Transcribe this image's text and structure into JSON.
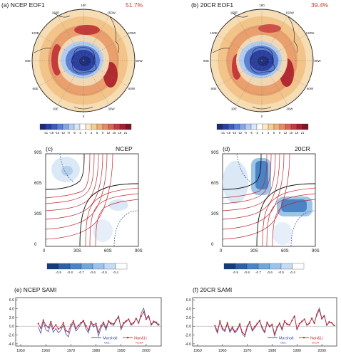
{
  "panels": {
    "a": {
      "title": "(a) NCEP EOF1",
      "percent": "51.7%",
      "lon_labels": [
        "180",
        "150W",
        "120W",
        "90W",
        "60W",
        "30W",
        "0",
        "30E",
        "60E",
        "90E",
        "120E",
        "150E"
      ]
    },
    "b": {
      "title": "(b) 20CR EOF1",
      "percent": "39.4%",
      "lon_labels": [
        "180",
        "150W",
        "120W",
        "90W",
        "60W",
        "30W",
        "0",
        "30E",
        "60E",
        "90E",
        "120E",
        "150E"
      ]
    },
    "c": {
      "title": "(c)",
      "label": "NCEP"
    },
    "d": {
      "title": "(d)",
      "label": "20CR"
    },
    "e": {
      "title": "(e) NCEP SAMI"
    },
    "f": {
      "title": "(f) 20CR SAMI"
    }
  },
  "colorbar_top": {
    "ticks": [
      "-21",
      "-18",
      "-15",
      "-12",
      "-9",
      "-6",
      "-3",
      "0",
      "3",
      "6",
      "9",
      "12",
      "15",
      "18",
      "21"
    ],
    "colors": [
      "#1a2a78",
      "#2b3f9e",
      "#3e5bbf",
      "#5a7fd6",
      "#84a7e3",
      "#b2cdef",
      "#d8e6f6",
      "#ffffff",
      "#fbe8c6",
      "#f4cf94",
      "#eeb079",
      "#e48c6a",
      "#d76456",
      "#c23b3f",
      "#a61f2e",
      "#7e1522"
    ]
  },
  "colorbar_corr": {
    "ticks": [
      "-0.9",
      "-0.8",
      "-0.7",
      "-0.6",
      "-0.5",
      "-0.4"
    ],
    "colors": [
      "#173a7a",
      "#2e5fa8",
      "#4a83c6",
      "#72a6da",
      "#9cc4e8",
      "#c4dcf2",
      "#ffffff"
    ]
  },
  "corr_axes": {
    "c": {
      "y_ticks": [
        "90S",
        "60S",
        "30S",
        "0"
      ],
      "x_ticks": [
        "0",
        "30S",
        "60S",
        "90S"
      ]
    },
    "d": {
      "y_ticks": [
        "90S",
        "60S",
        "30S",
        "0"
      ],
      "x_ticks": [
        "0",
        "30S",
        "60S",
        "90S"
      ]
    }
  },
  "timeseries_axes": {
    "y_ticks": [
      "6.0",
      "4.0",
      "2.0",
      "0.0",
      "-2.0",
      "-4.0"
    ],
    "x_ticks": [
      "1950",
      "1960",
      "1970",
      "1980",
      "1990",
      "2000"
    ]
  },
  "legend": {
    "e": {
      "marshall": "Marshall",
      "marshall_sub": "Obs.",
      "nanli": "Nan&Li",
      "nanli_sub": "NCEP"
    },
    "f": {
      "marshall": "Marshall",
      "marshall_sub": "Obs.",
      "nanli": "Nan&Li",
      "nanli_sub": "20CR"
    }
  },
  "chart_data": [
    {
      "type": "line",
      "title": "(e) NCEP SAMI",
      "x": [
        1957,
        1958,
        1959,
        1960,
        1961,
        1962,
        1963,
        1964,
        1965,
        1966,
        1967,
        1968,
        1969,
        1970,
        1971,
        1972,
        1973,
        1974,
        1975,
        1976,
        1977,
        1978,
        1979,
        1980,
        1981,
        1982,
        1983,
        1984,
        1985,
        1986,
        1987,
        1988,
        1989,
        1990,
        1991,
        1992,
        1993,
        1994,
        1995,
        1996,
        1997,
        1998,
        1999,
        2000,
        2001,
        2002,
        2003,
        2004,
        2005
      ],
      "series": [
        {
          "name": "Marshall",
          "values": [
            -0.2,
            -1.6,
            1.1,
            -0.8,
            -1.2,
            0.6,
            -1.4,
            -0.5,
            -1.5,
            -0.9,
            0.3,
            -1.8,
            -2.4,
            -0.3,
            0.9,
            -1.1,
            -0.4,
            0.5,
            1.2,
            -0.6,
            -1.5,
            0.8,
            -0.2,
            0.3,
            -2.2,
            -0.4,
            0.6,
            -0.9,
            1.1,
            0.4,
            0.2,
            1.3,
            2.4,
            -0.8,
            0.5,
            1.0,
            1.6,
            0.2,
            0.6,
            1.9,
            0.6,
            2.9,
            4.1,
            1.8,
            2.5,
            0.2,
            0.9,
            0.7,
            0.1
          ]
        },
        {
          "name": "Nan&Li",
          "values": [
            0.6,
            -0.4,
            1.4,
            0.2,
            -0.3,
            1.0,
            -0.5,
            0.3,
            -0.6,
            -0.3,
            0.8,
            -1.0,
            -1.3,
            0.3,
            1.2,
            -0.5,
            0.2,
            0.8,
            1.3,
            0.1,
            -0.9,
            1.0,
            0.3,
            0.6,
            -1.3,
            0.1,
            0.9,
            -0.3,
            1.2,
            0.7,
            0.5,
            1.4,
            2.0,
            -0.3,
            0.8,
            1.2,
            1.6,
            0.5,
            0.8,
            1.7,
            0.8,
            2.3,
            3.2,
            1.6,
            2.1,
            0.5,
            1.1,
            0.9,
            0.4
          ]
        }
      ],
      "ylim": [
        -4.5,
        6.5
      ],
      "xlim": [
        1948,
        2006
      ]
    },
    {
      "type": "line",
      "title": "(f) 20CR SAMI",
      "x": [
        1957,
        1958,
        1959,
        1960,
        1961,
        1962,
        1963,
        1964,
        1965,
        1966,
        1967,
        1968,
        1969,
        1970,
        1971,
        1972,
        1973,
        1974,
        1975,
        1976,
        1977,
        1978,
        1979,
        1980,
        1981,
        1982,
        1983,
        1984,
        1985,
        1986,
        1987,
        1988,
        1989,
        1990,
        1991,
        1992,
        1993,
        1994,
        1995,
        1996,
        1997,
        1998,
        1999,
        2000,
        2001,
        2002,
        2003,
        2004,
        2005
      ],
      "series": [
        {
          "name": "Marshall",
          "values": [
            -0.2,
            -1.6,
            1.1,
            -0.8,
            -1.2,
            0.6,
            -1.4,
            -0.5,
            -1.5,
            -0.9,
            0.3,
            -1.8,
            -2.4,
            -0.3,
            0.9,
            -1.1,
            -0.4,
            0.5,
            1.2,
            -0.6,
            -1.5,
            0.8,
            -0.2,
            0.3,
            -2.2,
            -0.4,
            0.6,
            -0.9,
            1.1,
            0.4,
            0.2,
            1.3,
            2.4,
            -0.8,
            0.5,
            1.0,
            1.6,
            0.2,
            0.6,
            1.9,
            0.6,
            2.9,
            4.1,
            1.8,
            2.5,
            0.2,
            0.9,
            0.7,
            0.1
          ]
        },
        {
          "name": "Nan&Li",
          "values": [
            0.1,
            -1.1,
            1.2,
            -0.5,
            -0.9,
            0.8,
            -1.0,
            -0.2,
            -1.2,
            -0.6,
            0.5,
            -1.4,
            -1.9,
            0.0,
            1.0,
            -0.8,
            -0.1,
            0.6,
            1.3,
            -0.3,
            -1.2,
            0.9,
            0.0,
            0.4,
            -1.8,
            -0.2,
            0.7,
            -0.6,
            1.2,
            0.5,
            0.3,
            1.3,
            2.2,
            -0.6,
            0.6,
            1.1,
            1.6,
            0.3,
            0.7,
            1.8,
            0.7,
            2.6,
            3.6,
            1.7,
            2.3,
            0.3,
            1.0,
            0.8,
            0.2
          ]
        }
      ],
      "ylim": [
        -4.5,
        6.5
      ],
      "xlim": [
        1948,
        2006
      ]
    }
  ]
}
